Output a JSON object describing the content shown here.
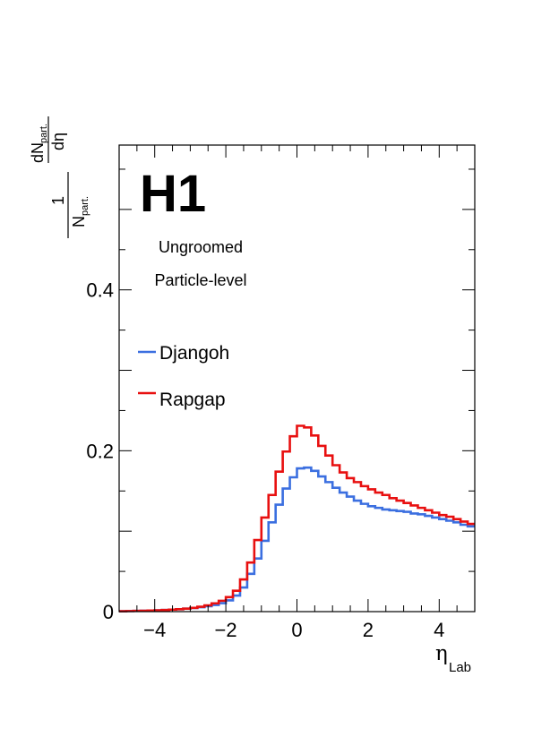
{
  "chart_data": {
    "type": "line",
    "style": "histogram-step",
    "xlim": [
      -5,
      5
    ],
    "ylim": [
      0,
      0.58
    ],
    "grid": false,
    "legend_placement": "upper-left",
    "x_ticks": [
      -4,
      -2,
      0,
      2,
      4
    ],
    "x_tick_labels": [
      "−4",
      "−2",
      "0",
      "2",
      "4"
    ],
    "y_ticks": [
      0,
      0.2,
      0.4
    ],
    "y_tick_labels": [
      "0",
      "0.2",
      "0.4"
    ],
    "xlabel": {
      "main": "η",
      "sub": "Lab"
    },
    "ylabel": {
      "frac_num": "1",
      "frac_den": "N",
      "frac_den_sub": "part.",
      "deriv_num": "dN",
      "deriv_num_sub": "part.",
      "deriv_den": "dη"
    },
    "logo": "H1",
    "annotations": [
      "Ungroomed",
      "Particle-level"
    ],
    "bin_edges": [
      -5.0,
      -4.8,
      -4.6,
      -4.4,
      -4.2,
      -4.0,
      -3.8,
      -3.6,
      -3.4,
      -3.2,
      -3.0,
      -2.8,
      -2.6,
      -2.4,
      -2.2,
      -2.0,
      -1.8,
      -1.6,
      -1.4,
      -1.2,
      -1.0,
      -0.8,
      -0.6,
      -0.4,
      -0.2,
      0.0,
      0.2,
      0.4,
      0.6,
      0.8,
      1.0,
      1.2,
      1.4,
      1.6,
      1.8,
      2.0,
      2.2,
      2.4,
      2.6,
      2.8,
      3.0,
      3.2,
      3.4,
      3.6,
      3.8,
      4.0,
      4.2,
      4.4,
      4.6,
      4.8,
      5.0
    ],
    "series": [
      {
        "name": "Djangoh",
        "color": "#3b6fe0",
        "values": [
          0.0005,
          0.0007,
          0.0009,
          0.0011,
          0.0013,
          0.0016,
          0.002,
          0.0025,
          0.003,
          0.0037,
          0.0045,
          0.0055,
          0.0068,
          0.0083,
          0.0105,
          0.014,
          0.02,
          0.03,
          0.047,
          0.066,
          0.088,
          0.111,
          0.133,
          0.153,
          0.167,
          0.178,
          0.179,
          0.175,
          0.168,
          0.161,
          0.154,
          0.148,
          0.143,
          0.138,
          0.134,
          0.131,
          0.129,
          0.127,
          0.126,
          0.125,
          0.124,
          0.122,
          0.121,
          0.119,
          0.117,
          0.115,
          0.113,
          0.111,
          0.108,
          0.106
        ]
      },
      {
        "name": "Rapgap",
        "color": "#e81010",
        "values": [
          0.0005,
          0.0007,
          0.0009,
          0.0011,
          0.0013,
          0.0016,
          0.002,
          0.0025,
          0.003,
          0.0037,
          0.0047,
          0.006,
          0.0078,
          0.0103,
          0.0135,
          0.018,
          0.026,
          0.04,
          0.061,
          0.089,
          0.117,
          0.145,
          0.174,
          0.199,
          0.218,
          0.231,
          0.229,
          0.219,
          0.206,
          0.194,
          0.182,
          0.173,
          0.166,
          0.161,
          0.156,
          0.152,
          0.148,
          0.145,
          0.141,
          0.138,
          0.135,
          0.132,
          0.129,
          0.126,
          0.123,
          0.12,
          0.118,
          0.115,
          0.112,
          0.109
        ]
      }
    ]
  }
}
